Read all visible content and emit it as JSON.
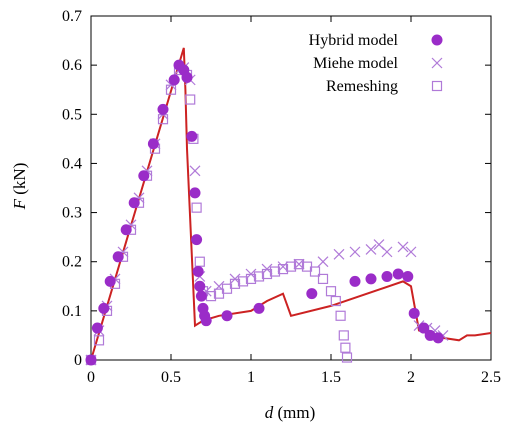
{
  "chart_data": {
    "type": "scatter",
    "xlabel": {
      "symbol": "d",
      "unit": " (mm)"
    },
    "ylabel": {
      "symbol": "F",
      "unit": " (kN)"
    },
    "xlim": [
      0,
      2.5
    ],
    "ylim": [
      0,
      0.7
    ],
    "xticks": [
      "0",
      "0.5",
      "1",
      "1.5",
      "2",
      "2.5"
    ],
    "xtick_values": [
      0,
      0.5,
      1,
      1.5,
      2,
      2.5
    ],
    "yticks": [
      "0",
      "0.1",
      "0.2",
      "0.3",
      "0.4",
      "0.5",
      "0.6",
      "0.7"
    ],
    "ytick_values": [
      0,
      0.1,
      0.2,
      0.3,
      0.4,
      0.5,
      0.6,
      0.7
    ],
    "grid": false,
    "legend_position": "top-right",
    "line": {
      "color": "#cc2222",
      "x": [
        0,
        0.58,
        0.59,
        0.6,
        0.65,
        0.7,
        0.75,
        0.8,
        1.0,
        1.1,
        1.2,
        1.25,
        1.5,
        1.95,
        2.0,
        2.05,
        2.1,
        2.15,
        2.2,
        2.3,
        2.35,
        2.4,
        2.5
      ],
      "y": [
        0,
        0.635,
        0.55,
        0.43,
        0.07,
        0.08,
        0.085,
        0.09,
        0.1,
        0.12,
        0.135,
        0.09,
        0.11,
        0.16,
        0.15,
        0.06,
        0.055,
        0.05,
        0.045,
        0.04,
        0.05,
        0.05,
        0.055
      ]
    },
    "series": [
      {
        "name": "Hybrid model",
        "marker": "circle",
        "color": "#9a2cc8",
        "x": [
          0,
          0.04,
          0.08,
          0.12,
          0.17,
          0.22,
          0.27,
          0.33,
          0.39,
          0.45,
          0.52,
          0.55,
          0.58,
          0.6,
          0.63,
          0.65,
          0.66,
          0.67,
          0.68,
          0.69,
          0.7,
          0.71,
          0.72,
          0.85,
          1.05,
          1.38,
          1.65,
          1.75,
          1.85,
          1.92,
          1.98,
          2.02,
          2.08,
          2.12,
          2.17
        ],
        "y": [
          0,
          0.065,
          0.105,
          0.16,
          0.21,
          0.265,
          0.32,
          0.375,
          0.44,
          0.51,
          0.57,
          0.6,
          0.59,
          0.575,
          0.455,
          0.34,
          0.245,
          0.18,
          0.15,
          0.13,
          0.105,
          0.09,
          0.08,
          0.09,
          0.105,
          0.135,
          0.16,
          0.165,
          0.17,
          0.175,
          0.17,
          0.095,
          0.065,
          0.05,
          0.045
        ]
      },
      {
        "name": "Miehe model",
        "marker": "x",
        "color": "#b07ad8",
        "x": [
          0,
          0.05,
          0.1,
          0.15,
          0.2,
          0.25,
          0.3,
          0.35,
          0.4,
          0.45,
          0.5,
          0.55,
          0.58,
          0.62,
          0.65,
          0.68,
          0.72,
          0.8,
          0.9,
          1.0,
          1.1,
          1.2,
          1.3,
          1.45,
          1.55,
          1.65,
          1.75,
          1.8,
          1.85,
          1.95,
          2.0,
          2.05,
          2.1,
          2.15,
          2.2
        ],
        "y": [
          0,
          0.06,
          0.11,
          0.165,
          0.22,
          0.275,
          0.33,
          0.385,
          0.44,
          0.5,
          0.56,
          0.59,
          0.595,
          0.57,
          0.385,
          0.17,
          0.14,
          0.15,
          0.165,
          0.175,
          0.185,
          0.19,
          0.195,
          0.2,
          0.215,
          0.22,
          0.225,
          0.235,
          0.22,
          0.23,
          0.22,
          0.07,
          0.065,
          0.06,
          0.05
        ]
      },
      {
        "name": "Remeshing",
        "marker": "square",
        "color": "#b07ad8",
        "x": [
          0,
          0.05,
          0.1,
          0.15,
          0.2,
          0.25,
          0.3,
          0.35,
          0.4,
          0.45,
          0.5,
          0.55,
          0.6,
          0.62,
          0.64,
          0.66,
          0.68,
          0.7,
          0.75,
          0.8,
          0.85,
          0.9,
          0.95,
          1.0,
          1.05,
          1.1,
          1.15,
          1.2,
          1.25,
          1.3,
          1.35,
          1.4,
          1.45,
          1.5,
          1.53,
          1.56,
          1.58,
          1.59,
          1.6
        ],
        "y": [
          0,
          0.04,
          0.1,
          0.155,
          0.21,
          0.265,
          0.32,
          0.375,
          0.43,
          0.49,
          0.55,
          0.59,
          0.58,
          0.53,
          0.45,
          0.31,
          0.2,
          0.14,
          0.13,
          0.135,
          0.145,
          0.155,
          0.16,
          0.165,
          0.17,
          0.175,
          0.18,
          0.185,
          0.19,
          0.195,
          0.19,
          0.18,
          0.165,
          0.14,
          0.12,
          0.09,
          0.05,
          0.025,
          0.005
        ]
      }
    ]
  }
}
